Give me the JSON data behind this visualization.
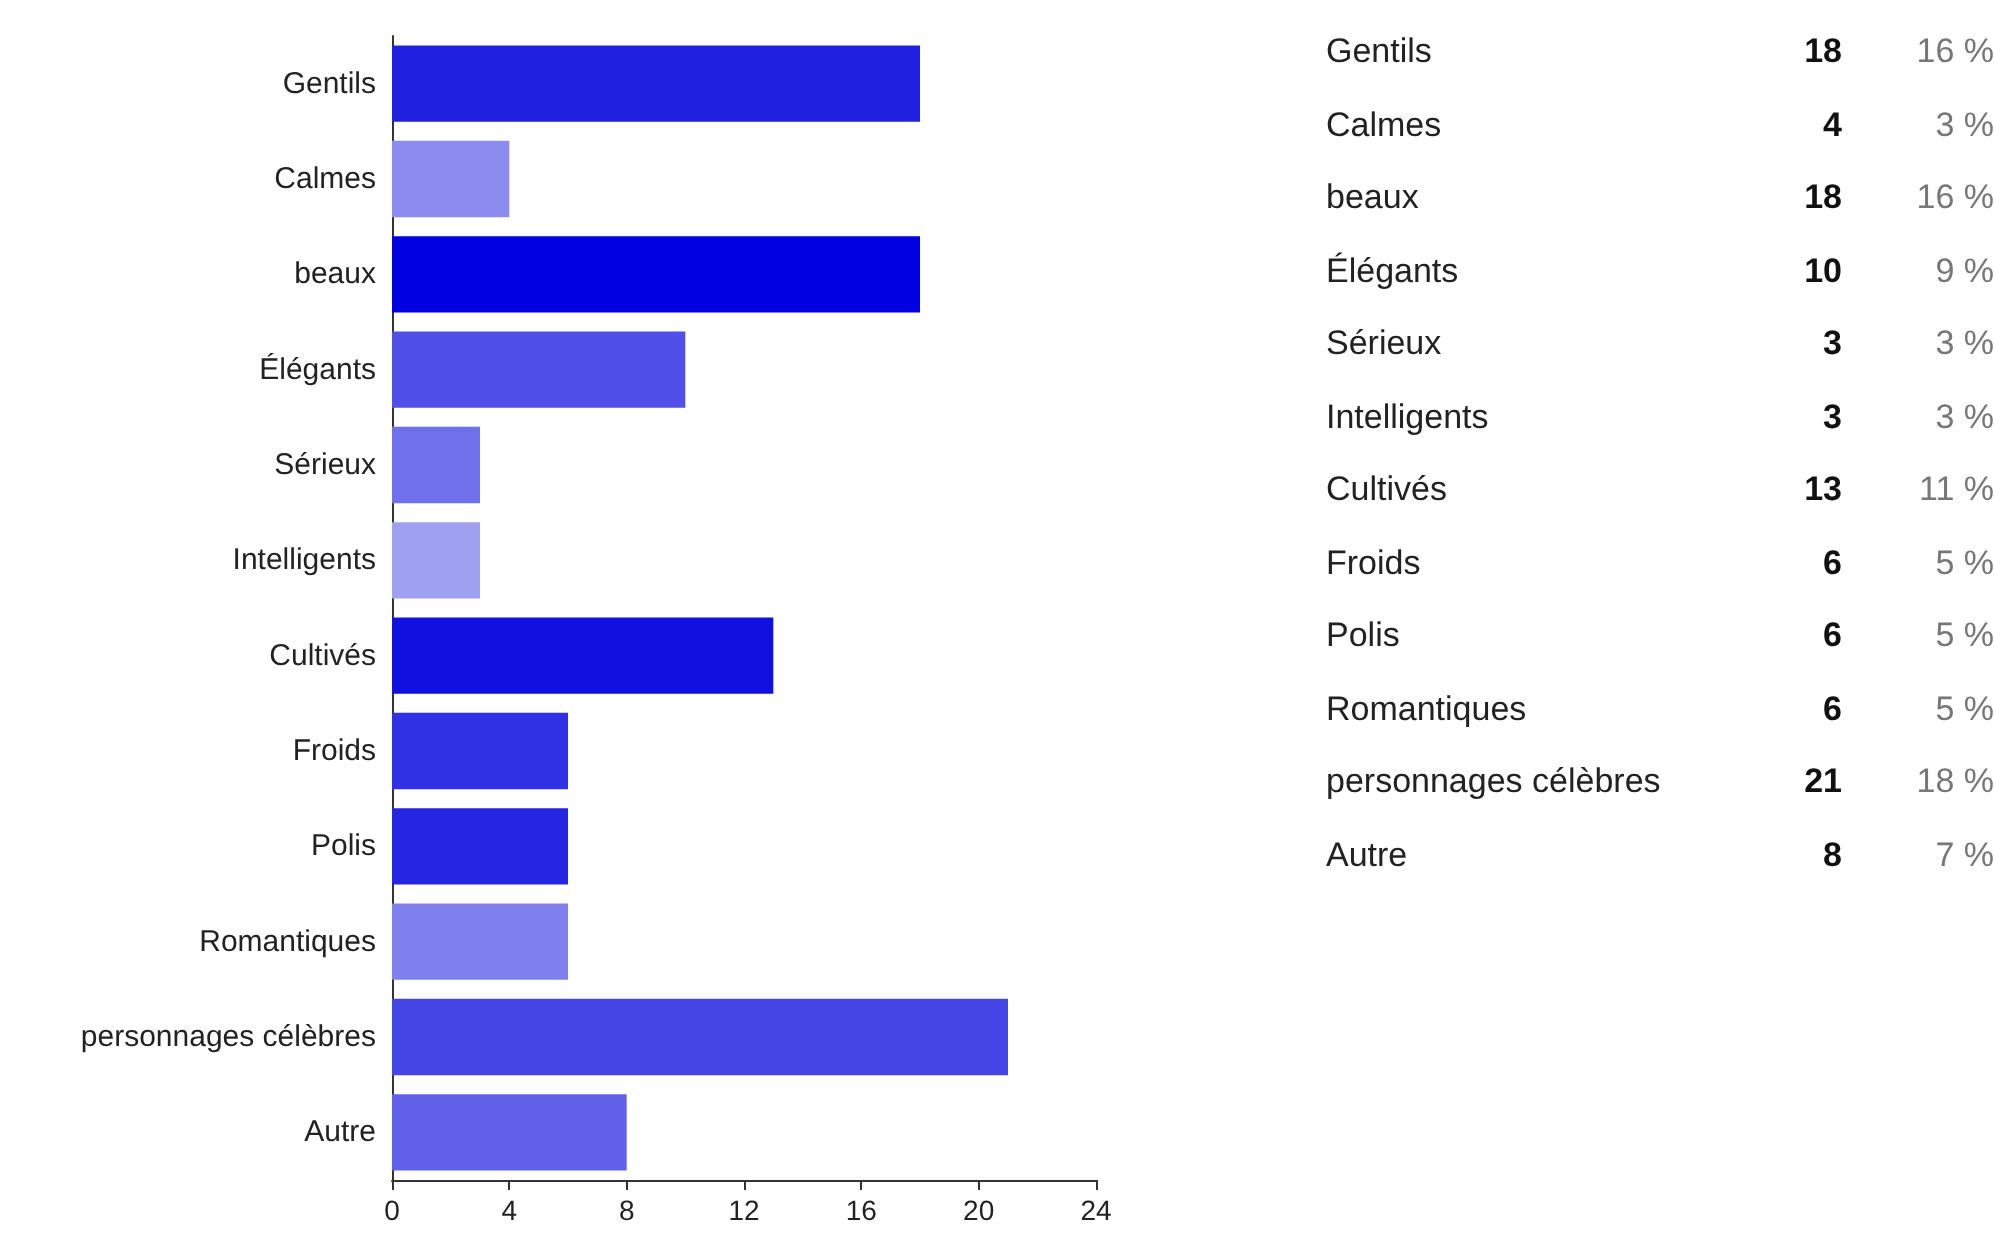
{
  "chart_data": [
    {
      "type": "bar",
      "orientation": "horizontal",
      "categories": [
        "Gentils",
        "Calmes",
        "beaux",
        "Élégants",
        "Sérieux",
        "Intelligents",
        "Cultivés",
        "Froids",
        "Polis",
        "Romantiques",
        "personnages célèbres",
        "Autre"
      ],
      "values": [
        18,
        4,
        18,
        10,
        3,
        3,
        13,
        6,
        6,
        6,
        21,
        8
      ],
      "colors": [
        "#2020e0",
        "#8c8cf0",
        "#0000e0",
        "#5050e8",
        "#7070ec",
        "#a0a0f0",
        "#1010e0",
        "#3030e4",
        "#2525e2",
        "#8080ee",
        "#4545e6",
        "#6060ea"
      ],
      "xlim": [
        0,
        24
      ],
      "xticks": [
        0,
        4,
        8,
        12,
        16,
        20,
        24
      ],
      "grid": false
    },
    {
      "type": "other",
      "annotations": [
        "Gentils",
        "18",
        "16 %",
        "Calmes",
        "4",
        "3 %",
        "beaux",
        "18",
        "16 %",
        "Élégants",
        "10",
        "9 %",
        "Sérieux",
        "3",
        "3 %",
        "Intelligents",
        "3",
        "3 %",
        "Cultivés",
        "13",
        "11 %",
        "Froids",
        "6",
        "5 %",
        "Polis",
        "6",
        "5 %",
        "Romantiques",
        "6",
        "5 %",
        "personnages célèbres",
        "21",
        "18 %",
        "Autre",
        "8",
        "7 %"
      ]
    }
  ]
}
